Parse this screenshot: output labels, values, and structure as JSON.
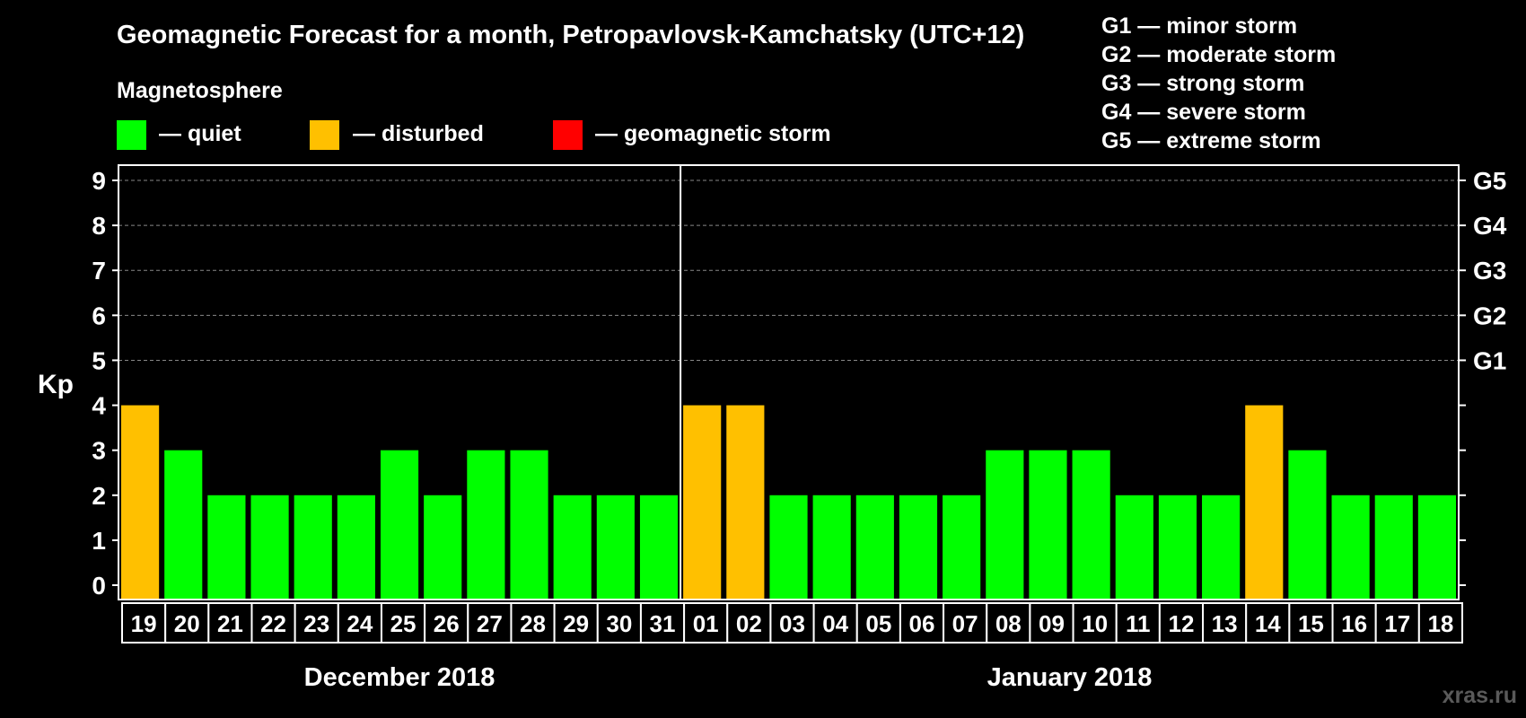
{
  "title": "Geomagnetic Forecast for a month, Petropavlovsk-Kamchatsky (UTC+12)",
  "legend": {
    "heading": "Magnetosphere",
    "items": [
      {
        "label": "— quiet",
        "color": "#00ff00"
      },
      {
        "label": "— disturbed",
        "color": "#ffc000"
      },
      {
        "label": "— geomagnetic storm",
        "color": "#ff0000"
      }
    ]
  },
  "storm_scale": [
    "G1 — minor storm",
    "G2 — moderate storm",
    "G3 — strong storm",
    "G4 — severe storm",
    "G5 — extreme storm"
  ],
  "watermark": "xras.ru",
  "chart_data": {
    "type": "bar",
    "ylabel": "Kp",
    "ylim": [
      0,
      9
    ],
    "yticks": [
      "0",
      "1",
      "2",
      "3",
      "4",
      "5",
      "6",
      "7",
      "8",
      "9"
    ],
    "right_ticks": [
      {
        "kp": 5,
        "label": "G1"
      },
      {
        "kp": 6,
        "label": "G2"
      },
      {
        "kp": 7,
        "label": "G3"
      },
      {
        "kp": 8,
        "label": "G4"
      },
      {
        "kp": 9,
        "label": "G5"
      }
    ],
    "grid": true,
    "months": [
      {
        "label": "December 2018",
        "count": 13
      },
      {
        "label": "January 2018",
        "count": 18
      }
    ],
    "categories": [
      "19",
      "20",
      "21",
      "22",
      "23",
      "24",
      "25",
      "26",
      "27",
      "28",
      "29",
      "30",
      "31",
      "01",
      "02",
      "03",
      "04",
      "05",
      "06",
      "07",
      "08",
      "09",
      "10",
      "11",
      "12",
      "13",
      "14",
      "15",
      "16",
      "17",
      "18"
    ],
    "values": [
      4,
      3,
      2,
      2,
      2,
      2,
      3,
      2,
      3,
      3,
      2,
      2,
      2,
      4,
      4,
      2,
      2,
      2,
      2,
      2,
      3,
      3,
      3,
      2,
      2,
      2,
      4,
      3,
      2,
      2,
      2
    ],
    "status": [
      "disturbed",
      "quiet",
      "quiet",
      "quiet",
      "quiet",
      "quiet",
      "quiet",
      "quiet",
      "quiet",
      "quiet",
      "quiet",
      "quiet",
      "quiet",
      "disturbed",
      "disturbed",
      "quiet",
      "quiet",
      "quiet",
      "quiet",
      "quiet",
      "quiet",
      "quiet",
      "quiet",
      "quiet",
      "quiet",
      "quiet",
      "disturbed",
      "quiet",
      "quiet",
      "quiet",
      "quiet"
    ],
    "status_colors": {
      "quiet": "#00ff00",
      "disturbed": "#ffc000",
      "storm": "#ff0000"
    }
  }
}
